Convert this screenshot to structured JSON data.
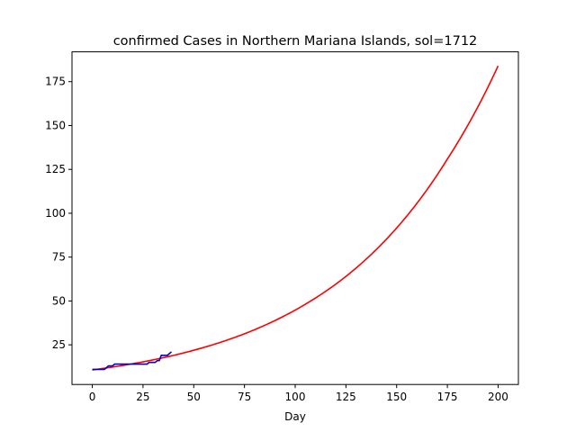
{
  "chart_data": {
    "type": "line",
    "title": "confirmed Cases in Northern Mariana Islands, sol=1712",
    "xlabel": "Day",
    "ylabel": "",
    "xlim": [
      -10,
      210
    ],
    "ylim": [
      2.4,
      192.0
    ],
    "x_ticks": [
      0,
      25,
      50,
      75,
      100,
      125,
      150,
      175,
      200
    ],
    "y_ticks": [
      25,
      50,
      75,
      100,
      125,
      150,
      175
    ],
    "grid": false,
    "legend": "none",
    "series": [
      {
        "color": "#ff0000",
        "style": "smooth",
        "x": [
          0,
          25,
          50,
          75,
          100,
          125,
          150,
          175,
          200
        ],
        "y": [
          10.7,
          15.3,
          21.9,
          31.3,
          44.8,
          64.0,
          91.6,
          130.9,
          184.0
        ]
      },
      {
        "color": "#0000cd",
        "style": "line",
        "x": [
          0,
          6,
          7,
          8,
          10,
          11,
          12,
          27,
          28,
          31,
          32,
          33,
          34,
          37,
          38,
          39
        ],
        "y": [
          11,
          11,
          12,
          13,
          13,
          14,
          14,
          14,
          15,
          15,
          16,
          16,
          19,
          19,
          20,
          21
        ]
      }
    ]
  }
}
